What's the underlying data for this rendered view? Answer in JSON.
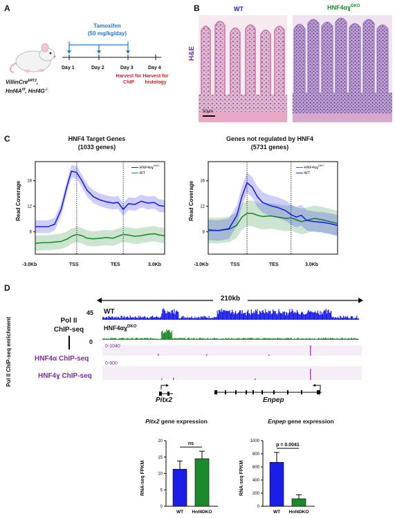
{
  "panelA": {
    "letter": "A",
    "treatment": "Tamoxifen",
    "dose": "(50 mg/kg/day)",
    "days": [
      "Day 1",
      "Day 2",
      "Day 3",
      "Day 4"
    ],
    "harvest_chip": "Harvest for ChIP",
    "harvest_histology": "Harvest for histology",
    "mouse_line1": "VillinCre",
    "mouse_line1_sup": "ERT2",
    "mouse_line2a": "Hnf4A",
    "mouse_line2a_sup": "f/f",
    "mouse_line2b": ", Hnf4G",
    "mouse_line2b_sup": "-/-"
  },
  "panelB": {
    "letter": "B",
    "wt_label": "WT",
    "dko_label": "HNF4αɣ",
    "dko_sup": "DKO",
    "stain_label": "H&E",
    "scale_bar": "50μm"
  },
  "panelC": {
    "letter": "C",
    "left_title1": "HNF4 Target Genes",
    "left_title2": "(1033 genes)",
    "right_title1": "Genes not regulated by HNF4",
    "right_title2": "(5731 genes)",
    "ylabel": "Read Coverage",
    "xticks": [
      "-3.0Kb",
      "TSS",
      "TES",
      "3.0Kb"
    ],
    "legend_dko": "HNF4αɣ",
    "legend_dko_sup": "DKO",
    "legend_wt": "WT"
  },
  "panelD": {
    "letter": "D",
    "yaxis_label": "Pol II ChIP-seq enrichment",
    "span": "210kb",
    "polii_label1": "Pol II",
    "polii_label2": "ChIP-seq",
    "scale_max": "45",
    "scale_min": "0",
    "wt_track": "WT",
    "dko_track": "HNF4αɣ",
    "dko_track_sup": "DKO",
    "hnf4a_label": "HNF4α ChIP-seq",
    "hnf4a_range": "0-1040",
    "hnf4g_label": "HNF4ɣ ChIP-seq",
    "hnf4g_range": "0-900",
    "gene1": "Pitx2",
    "gene2": "Enpep"
  },
  "colors": {
    "wt": "#1b1ee6",
    "dko": "#1c8a2a",
    "chip": "#b03cc6",
    "harvest": "#d0202a",
    "tamoxifen": "#2277cc"
  },
  "chart_data": [
    {
      "type": "line",
      "title": "HNF4 Target Genes (1033 genes)",
      "ylabel": "Read Coverage",
      "xlabel": "",
      "xticks": [
        "-3.0Kb",
        "TSS",
        "TES",
        "3.0Kb"
      ],
      "yticks": [
        8,
        12,
        16
      ],
      "ylim": [
        4.5,
        19
      ],
      "x": [
        0,
        0.05,
        0.1,
        0.15,
        0.2,
        0.25,
        0.28,
        0.32,
        0.36,
        0.4,
        0.45,
        0.5,
        0.55,
        0.6,
        0.64,
        0.68,
        0.72,
        0.77,
        0.82,
        0.87,
        0.92,
        0.96,
        1.0
      ],
      "series": [
        {
          "name": "HNF4αɣDKO",
          "values": [
            8.8,
            8.8,
            8.8,
            9.2,
            11.5,
            15.5,
            17.5,
            17.3,
            16.0,
            14.5,
            13.5,
            13.0,
            12.7,
            12.5,
            12.6,
            11.5,
            12.4,
            12.3,
            12.8,
            12.5,
            12.6,
            12.1,
            12.0
          ]
        },
        {
          "name": "WT",
          "values": [
            6.2,
            6.3,
            6.3,
            6.4,
            6.5,
            6.9,
            7.3,
            7.6,
            7.4,
            7.0,
            6.9,
            7.0,
            7.1,
            7.0,
            7.3,
            7.6,
            7.5,
            7.3,
            7.4,
            7.6,
            7.7,
            7.5,
            7.4
          ]
        }
      ],
      "legend": "top-right"
    },
    {
      "type": "line",
      "title": "Genes not regulated by HNF4 (5731 genes)",
      "ylabel": "Read Coverage",
      "xlabel": "",
      "xticks": [
        "-3.0Kb",
        "TSS",
        "TES",
        "3.0Kb"
      ],
      "yticks": [
        8,
        12,
        16
      ],
      "ylim": [
        4.5,
        19
      ],
      "x": [
        0,
        0.08,
        0.16,
        0.22,
        0.26,
        0.3,
        0.34,
        0.38,
        0.42,
        0.48,
        0.54,
        0.6,
        0.64,
        0.68,
        0.72,
        0.76,
        0.82,
        0.88,
        0.94,
        1.0
      ],
      "series": [
        {
          "name": "HNF4αɣDKO",
          "values": [
            8.2,
            8.2,
            8.4,
            9.0,
            10.3,
            10.9,
            10.9,
            10.6,
            10.4,
            10.5,
            10.3,
            10.1,
            10.2,
            9.9,
            9.6,
            9.8,
            10.1,
            9.9,
            9.6,
            9.3
          ]
        },
        {
          "name": "WT",
          "values": [
            8.3,
            8.2,
            8.5,
            10.5,
            13.5,
            15.7,
            15.0,
            13.5,
            12.6,
            12.1,
            11.8,
            11.3,
            10.7,
            10.3,
            10.6,
            9.8,
            9.6,
            9.5,
            9.3,
            9.0
          ]
        }
      ],
      "legend": "top-right"
    },
    {
      "type": "bar",
      "title": "Pitx2 gene expression",
      "ylabel": "RNA-seq FPKM",
      "categories": [
        "WT",
        "Hnf4DKO"
      ],
      "values": [
        11.3,
        14.5
      ],
      "errors": [
        2.5,
        2.3
      ],
      "yticks": [
        0,
        5,
        10,
        15,
        20
      ],
      "ylim": [
        0,
        20
      ],
      "annotation": "ns"
    },
    {
      "type": "bar",
      "title": "Enpep gene expression",
      "ylabel": "RNA-seq FPKM",
      "categories": [
        "WT",
        "Hnf4DKO"
      ],
      "values": [
        670,
        115
      ],
      "errors": [
        150,
        60
      ],
      "yticks": [
        0,
        200,
        400,
        600,
        800,
        1000
      ],
      "ylim": [
        0,
        1000
      ],
      "annotation": "p = 0.0041"
    }
  ],
  "panelE_titles": {
    "pitx2_gene": "Pitx2",
    "pitx2_rest": " gene expression",
    "enpep_gene": "Enpep",
    "enpep_rest": " gene expression"
  }
}
